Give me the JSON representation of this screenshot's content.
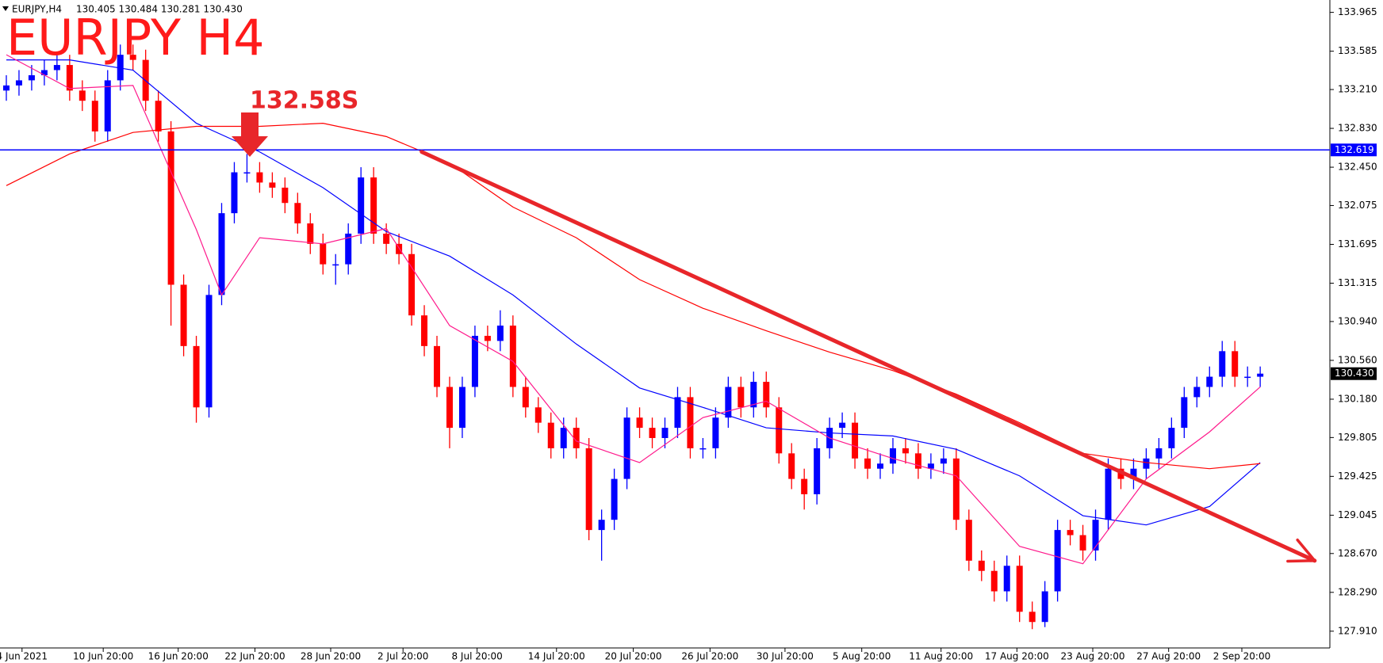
{
  "chart_data": {
    "type": "candlestick",
    "header": {
      "symbol": "EURJPY,H4",
      "ohlc": "130.405 130.484 130.281 130.430"
    },
    "title": "EURJPY H4",
    "annotation": {
      "text": "132.58S"
    },
    "xlim": [
      -0.5,
      104.5
    ],
    "xticks": [
      {
        "value": 1.24,
        "label": "4 Jun 2021"
      },
      {
        "value": 7.65,
        "label": "10 Jun 20:00"
      },
      {
        "value": 13.57,
        "label": "16 Jun 20:00"
      },
      {
        "value": 19.63,
        "label": "22 Jun 20:00"
      },
      {
        "value": 25.61,
        "label": "28 Jun 20:00"
      },
      {
        "value": 31.32,
        "label": "2 Jul 20:00"
      },
      {
        "value": 37.17,
        "label": "8 Jul 20:00"
      },
      {
        "value": 43.44,
        "label": "14 Jul 20:00"
      },
      {
        "value": 49.5,
        "label": "20 Jul 20:00"
      },
      {
        "value": 55.56,
        "label": "26 Jul 20:00"
      },
      {
        "value": 61.48,
        "label": "30 Jul 20:00"
      },
      {
        "value": 67.54,
        "label": "5 Aug 20:00"
      },
      {
        "value": 73.8,
        "label": "11 Aug 20:00"
      },
      {
        "value": 79.79,
        "label": "17 Aug 20:00"
      },
      {
        "value": 85.78,
        "label": "23 Aug 20:00"
      },
      {
        "value": 91.77,
        "label": "27 Aug 20:00"
      },
      {
        "value": 97.55,
        "label": "2 Sep 20:00"
      }
    ],
    "ylim": [
      127.746,
      134.086
    ],
    "yticks": [
      133.965,
      133.585,
      {
        "value": 133.21,
        "label": "133.210"
      },
      {
        "value": 132.83,
        "label": "132.830"
      },
      {
        "value": 132.45,
        "label": "132.450"
      },
      132.075,
      131.695,
      131.315,
      {
        "value": 130.94,
        "label": "130.940"
      },
      {
        "value": 130.56,
        "label": "130.560"
      },
      {
        "value": 130.18,
        "label": "130.180"
      },
      129.805,
      129.425,
      129.045,
      {
        "value": 128.67,
        "label": "128.670"
      },
      {
        "value": 128.29,
        "label": "128.290"
      },
      {
        "value": 127.91,
        "label": "127.910"
      }
    ],
    "up_color": "#0000ff",
    "down_color": "#ff0000",
    "open": [
      133.2,
      133.25,
      133.3,
      133.35,
      133.4,
      133.45,
      133.2,
      133.1,
      132.8,
      133.3,
      133.55,
      133.5,
      133.1,
      132.8,
      131.3,
      130.7,
      130.1,
      131.2,
      132.0,
      132.4,
      132.4,
      132.3,
      132.25,
      132.1,
      131.9,
      131.7,
      131.5,
      131.5,
      131.8,
      132.35,
      131.8,
      131.7,
      131.6,
      131.0,
      130.7,
      130.3,
      129.9,
      130.3,
      130.8,
      130.75,
      130.9,
      130.3,
      130.1,
      129.95,
      129.7,
      129.9,
      129.7,
      128.9,
      129.0,
      129.4,
      130.0,
      129.9,
      129.8,
      129.9,
      130.2,
      129.7,
      129.7,
      130.0,
      130.3,
      130.1,
      130.35,
      130.1,
      129.65,
      129.4,
      129.25,
      129.7,
      129.9,
      129.95,
      129.6,
      129.5,
      129.55,
      129.7,
      129.65,
      129.5,
      129.55,
      129.6,
      129.0,
      128.6,
      128.5,
      128.3,
      128.55,
      128.1,
      128.0,
      128.3,
      128.9,
      128.85,
      128.7,
      129.0,
      129.5,
      129.4,
      129.5,
      129.6,
      129.7,
      129.9,
      130.2,
      130.3,
      130.4,
      130.65,
      130.4,
      130.4
    ],
    "high": [
      133.35,
      133.4,
      133.45,
      133.5,
      133.55,
      133.55,
      133.3,
      133.2,
      133.4,
      133.65,
      133.65,
      133.6,
      133.2,
      132.9,
      131.4,
      130.8,
      131.3,
      132.1,
      132.5,
      132.58,
      132.5,
      132.4,
      132.35,
      132.2,
      132.0,
      131.8,
      131.6,
      131.9,
      132.45,
      132.45,
      131.9,
      131.8,
      131.7,
      131.1,
      130.8,
      130.4,
      130.4,
      130.9,
      130.9,
      131.05,
      131.0,
      130.4,
      130.2,
      130.05,
      130.0,
      130.0,
      129.8,
      129.1,
      129.5,
      130.1,
      130.1,
      130.0,
      130.0,
      130.3,
      130.3,
      129.8,
      130.1,
      130.4,
      130.4,
      130.45,
      130.45,
      130.2,
      129.75,
      129.5,
      129.8,
      130.0,
      130.05,
      130.05,
      129.7,
      129.65,
      129.8,
      129.8,
      129.75,
      129.65,
      129.7,
      129.7,
      129.1,
      128.7,
      128.6,
      128.65,
      128.65,
      128.2,
      128.4,
      129.0,
      129.0,
      128.95,
      129.1,
      129.6,
      129.6,
      129.6,
      129.7,
      129.8,
      130.0,
      130.3,
      130.4,
      130.5,
      130.75,
      130.75,
      130.5,
      130.5
    ],
    "low": [
      133.1,
      133.15,
      133.2,
      133.25,
      133.3,
      133.1,
      133.0,
      132.7,
      132.7,
      133.2,
      133.4,
      133.0,
      132.7,
      130.9,
      130.6,
      129.95,
      130.0,
      131.1,
      131.9,
      132.3,
      132.2,
      132.15,
      132.0,
      131.8,
      131.6,
      131.4,
      131.3,
      131.4,
      131.7,
      131.7,
      131.6,
      131.5,
      130.9,
      130.6,
      130.2,
      129.7,
      129.8,
      130.2,
      130.65,
      130.65,
      130.2,
      130.0,
      129.85,
      129.6,
      129.6,
      129.6,
      128.8,
      128.6,
      128.9,
      129.3,
      129.8,
      129.7,
      129.7,
      129.8,
      129.6,
      129.6,
      129.6,
      129.9,
      130.0,
      130.0,
      130.0,
      129.55,
      129.3,
      129.1,
      129.15,
      129.6,
      129.8,
      129.5,
      129.4,
      129.4,
      129.45,
      129.55,
      129.4,
      129.4,
      129.45,
      128.9,
      128.5,
      128.4,
      128.2,
      128.2,
      128.0,
      127.93,
      127.95,
      128.2,
      128.75,
      128.6,
      128.6,
      128.9,
      129.3,
      129.3,
      129.4,
      129.5,
      129.6,
      129.8,
      130.1,
      130.2,
      130.3,
      130.3,
      130.3,
      130.3
    ],
    "close": [
      133.25,
      133.3,
      133.35,
      133.4,
      133.45,
      133.2,
      133.1,
      132.8,
      133.3,
      133.55,
      133.5,
      133.1,
      132.8,
      131.3,
      130.7,
      130.1,
      131.2,
      132.0,
      132.4,
      132.4,
      132.3,
      132.25,
      132.1,
      131.9,
      131.7,
      131.5,
      131.5,
      131.8,
      132.35,
      131.8,
      131.7,
      131.6,
      131.0,
      130.7,
      130.3,
      129.9,
      130.3,
      130.8,
      130.75,
      130.9,
      130.3,
      130.1,
      129.95,
      129.7,
      129.9,
      129.7,
      128.9,
      129.0,
      129.4,
      130.0,
      129.9,
      129.8,
      129.9,
      130.2,
      129.7,
      129.7,
      130.0,
      130.3,
      130.1,
      130.35,
      130.1,
      129.65,
      129.4,
      129.25,
      129.7,
      129.9,
      129.95,
      129.6,
      129.5,
      129.55,
      129.7,
      129.65,
      129.5,
      129.55,
      129.6,
      129.0,
      128.6,
      128.5,
      128.3,
      128.55,
      128.1,
      128.0,
      128.3,
      128.9,
      128.85,
      128.7,
      129.0,
      129.5,
      129.4,
      129.5,
      129.6,
      129.7,
      129.9,
      130.2,
      130.3,
      130.4,
      130.65,
      130.4,
      130.4,
      130.43
    ],
    "series": [
      {
        "color": "#0000ff",
        "x": [
          0,
          5,
          10,
          15,
          20,
          25,
          30,
          35,
          40,
          45,
          50,
          55,
          60,
          65,
          70,
          75,
          80,
          85,
          90,
          95,
          99
        ],
        "values": [
          133.5,
          133.5,
          133.4,
          132.88,
          132.6,
          132.25,
          131.82,
          131.58,
          131.2,
          130.72,
          130.29,
          130.1,
          129.9,
          129.85,
          129.82,
          129.69,
          129.43,
          129.04,
          128.95,
          129.13,
          129.56
        ]
      },
      {
        "color": "#ff1a8c",
        "x": [
          0,
          5,
          10,
          15,
          17,
          20,
          25,
          30,
          35,
          40,
          45,
          50,
          55,
          60,
          65,
          70,
          75,
          80,
          85,
          90,
          95,
          99
        ],
        "values": [
          133.55,
          133.22,
          133.25,
          131.84,
          131.2,
          131.76,
          131.7,
          131.85,
          130.9,
          130.55,
          129.77,
          129.56,
          130.0,
          130.16,
          129.8,
          129.6,
          129.43,
          128.74,
          128.57,
          129.4,
          129.86,
          130.3
        ]
      },
      {
        "color": "#ff0000",
        "x": [
          0,
          5,
          10,
          15,
          20,
          25,
          30,
          35,
          40,
          45,
          50,
          55,
          60,
          65,
          70,
          75,
          80,
          85,
          90,
          95,
          99
        ],
        "values": [
          132.27,
          132.58,
          132.79,
          132.85,
          132.85,
          132.88,
          132.75,
          132.49,
          132.06,
          131.76,
          131.35,
          131.07,
          130.85,
          130.64,
          130.46,
          130.23,
          129.95,
          129.65,
          129.56,
          129.5,
          129.55
        ]
      }
    ],
    "trendline": {
      "color": "#e8262a",
      "x": [
        32.8,
        103.3
      ],
      "values": [
        132.6,
        128.6
      ]
    },
    "hline": {
      "value": 132.619,
      "color": "#0000ff"
    },
    "last_price": {
      "value": 130.43,
      "label": "130.430"
    }
  }
}
